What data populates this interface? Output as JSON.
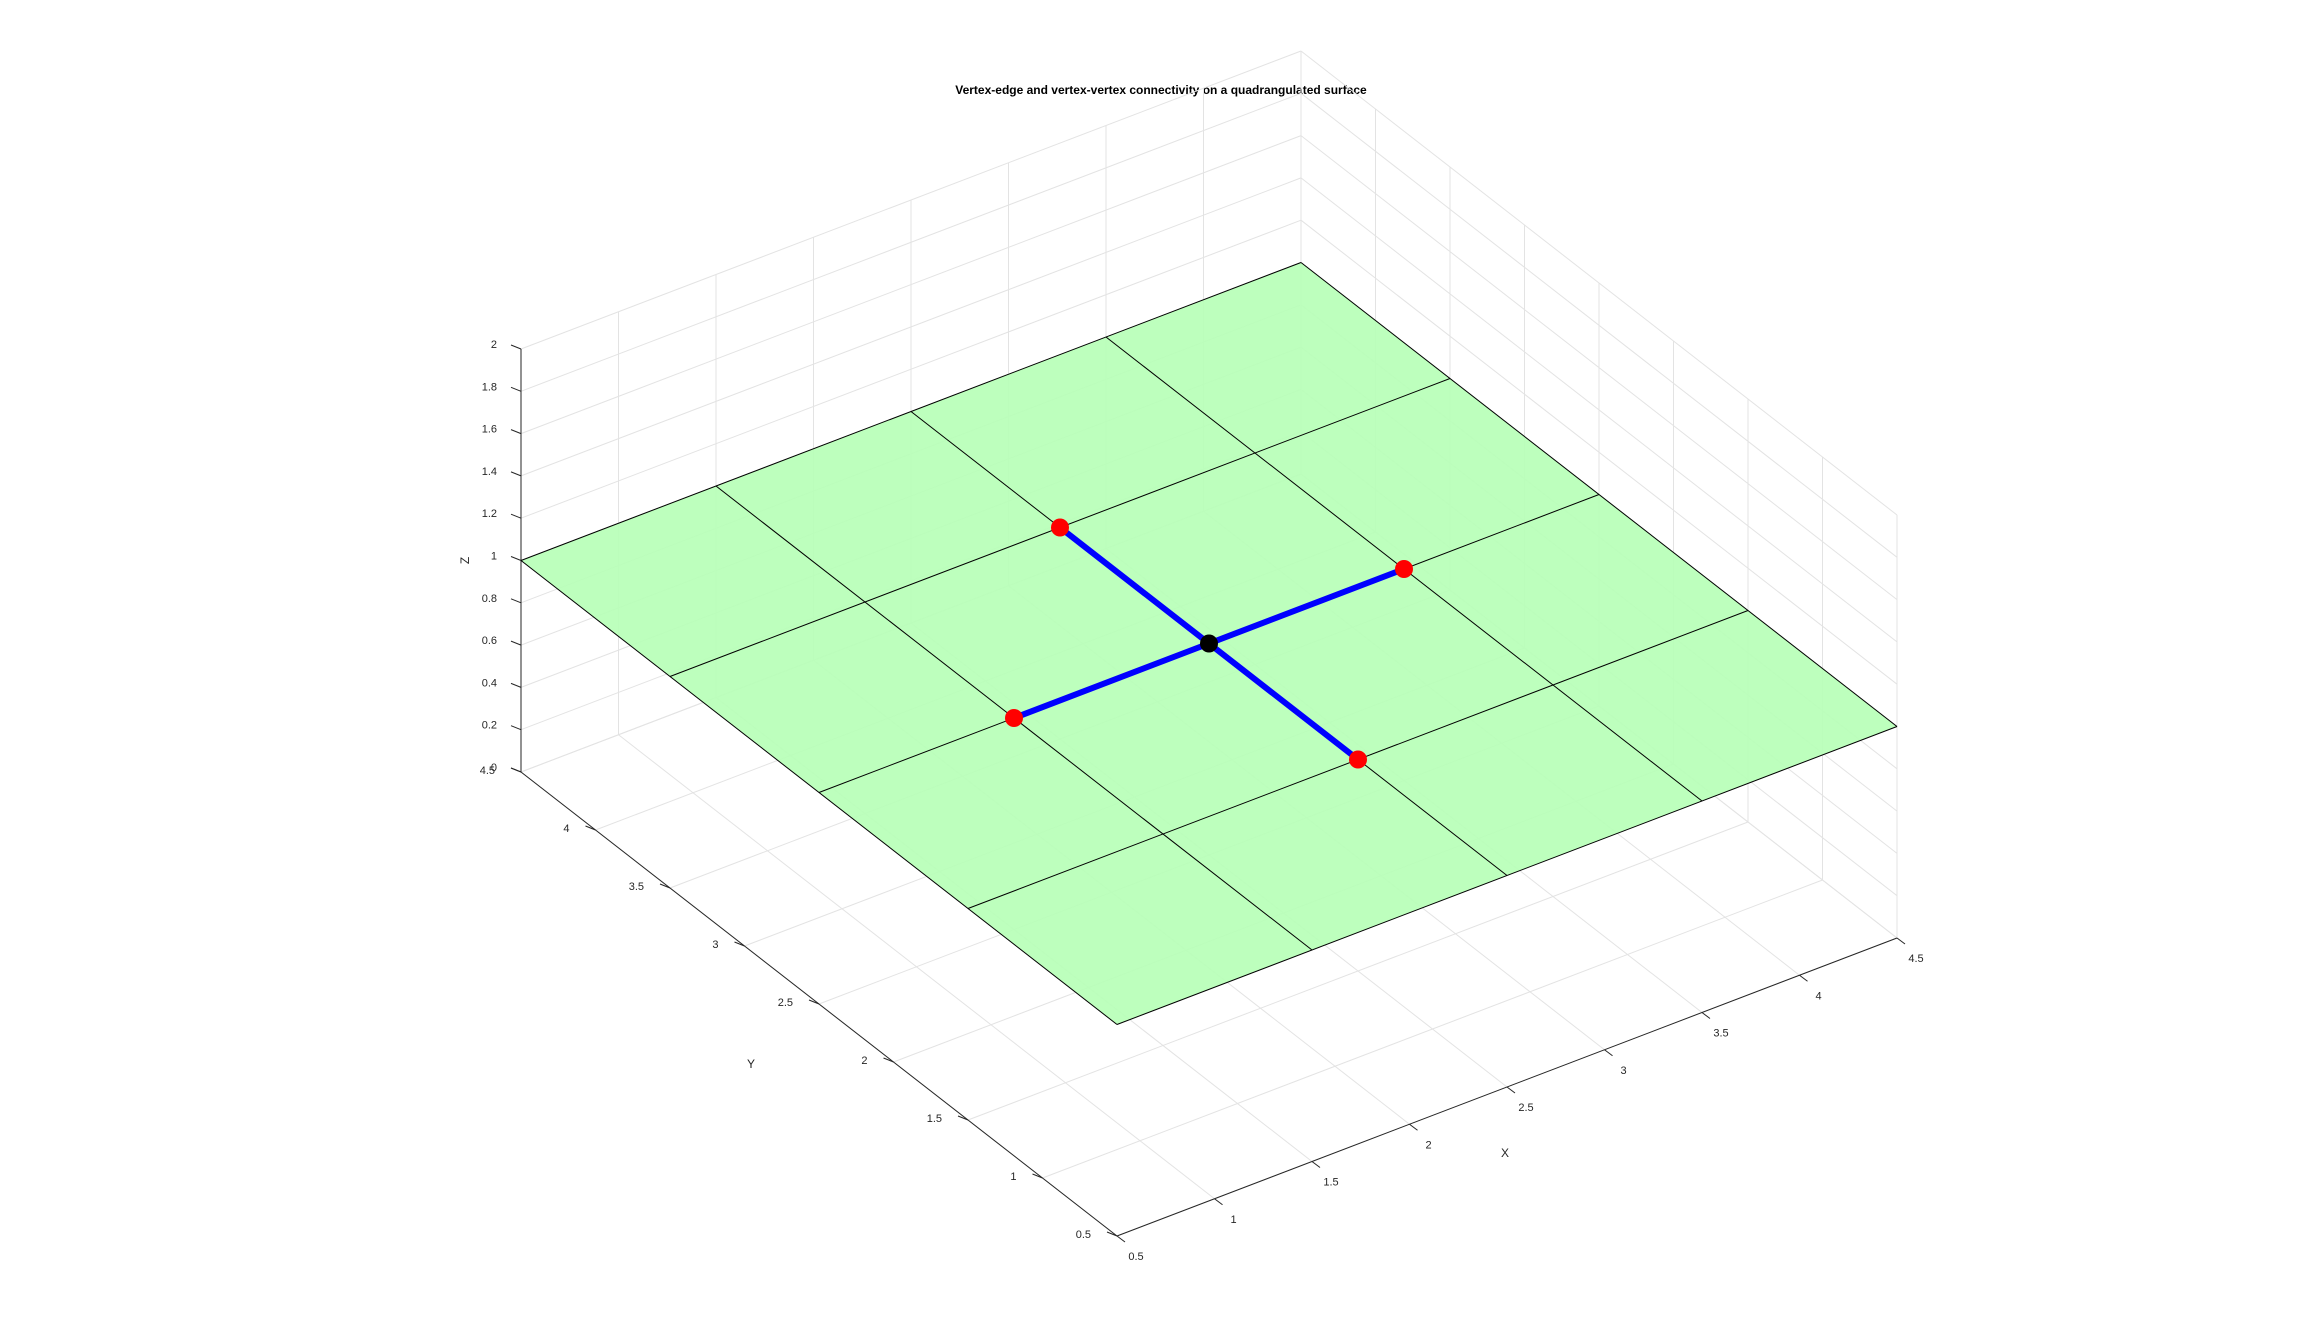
{
  "chart_data": {
    "type": "surface3d",
    "title": "Vertex-edge and vertex-vertex connectivity on a quadrangulated surface",
    "xlabel": "X",
    "ylabel": "Y",
    "zlabel": "Z",
    "xlim": [
      0.5,
      4.5
    ],
    "ylim": [
      0.5,
      4.5
    ],
    "zlim": [
      0,
      2
    ],
    "xticks": [
      0.5,
      1,
      1.5,
      2,
      2.5,
      3,
      3.5,
      4,
      4.5
    ],
    "yticks": [
      0.5,
      1,
      1.5,
      2,
      2.5,
      3,
      3.5,
      4,
      4.5
    ],
    "zticks": [
      0,
      0.2,
      0.4,
      0.6,
      0.8,
      1,
      1.2,
      1.4,
      1.6,
      1.8,
      2
    ],
    "xtick_labels": [
      "0.5",
      "1",
      "1.5",
      "2",
      "2.5",
      "3",
      "3.5",
      "4",
      "4.5"
    ],
    "ytick_labels": [
      "0.5",
      "1",
      "1.5",
      "2",
      "2.5",
      "3",
      "3.5",
      "4",
      "4.5"
    ],
    "ztick_labels": [
      "0",
      "0.2",
      "0.4",
      "0.6",
      "0.8",
      "1",
      "1.2",
      "1.4",
      "1.6",
      "1.8",
      "2"
    ],
    "surface": {
      "x_range": [
        0.5,
        4.5
      ],
      "y_range": [
        0.5,
        4.5
      ],
      "z": 1,
      "x_lines": [
        0.5,
        1.5,
        2.5,
        3.5,
        4.5
      ],
      "y_lines": [
        0.5,
        1.5,
        2.5,
        3.5,
        4.5
      ],
      "face_color": "#b6ffb6",
      "edge_color": "#000000"
    },
    "center_vertex": {
      "x": 2.5,
      "y": 2.5,
      "z": 1,
      "color": "#000000"
    },
    "neighbor_vertices": [
      {
        "x": 1.5,
        "y": 2.5,
        "z": 1
      },
      {
        "x": 3.5,
        "y": 2.5,
        "z": 1
      },
      {
        "x": 2.5,
        "y": 1.5,
        "z": 1
      },
      {
        "x": 2.5,
        "y": 3.5,
        "z": 1
      }
    ],
    "neighbor_color": "#ff0000",
    "edge_highlight_color": "#0000ff",
    "grid": true
  }
}
